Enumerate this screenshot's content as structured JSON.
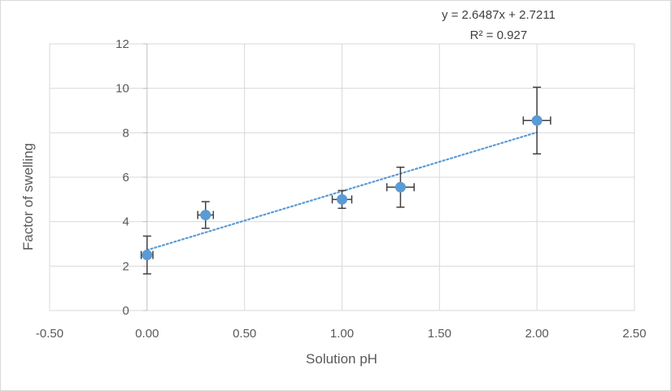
{
  "chart_data": {
    "type": "scatter",
    "title": "",
    "xlabel": "Solution pH",
    "ylabel": "Factor of swelling",
    "xlim": [
      -0.5,
      2.5
    ],
    "ylim": [
      0,
      12
    ],
    "x_ticks": [
      -0.5,
      0,
      0.5,
      1,
      1.5,
      2,
      2.5
    ],
    "x_tick_labels": [
      "-0.50",
      "0.00",
      "0.50",
      "1.00",
      "1.50",
      "2.00",
      "2.50"
    ],
    "y_ticks": [
      0,
      2,
      4,
      6,
      8,
      10,
      12
    ],
    "y_tick_labels": [
      "0",
      "2",
      "4",
      "6",
      "8",
      "10",
      "12"
    ],
    "grid": true,
    "legend": "none",
    "series": [
      {
        "color": "#5b9bd5",
        "points": [
          {
            "x": 0.0,
            "y": 2.5,
            "y_err": 0.85,
            "x_err": 0.03
          },
          {
            "x": 0.3,
            "y": 4.3,
            "y_err": 0.6,
            "x_err": 0.04
          },
          {
            "x": 1.0,
            "y": 5.0,
            "y_err": 0.4,
            "x_err": 0.05
          },
          {
            "x": 1.3,
            "y": 5.55,
            "y_err": 0.9,
            "x_err": 0.07
          },
          {
            "x": 2.0,
            "y": 8.55,
            "y_err": 1.5,
            "x_err": 0.07
          }
        ]
      }
    ],
    "trendline": {
      "type": "linear",
      "slope": 2.6487,
      "intercept": 2.7211,
      "x_range": [
        0,
        2
      ],
      "equation_label": "y = 2.6487x + 2.7211",
      "r2_label": "R² = 0.927",
      "color": "#5b9bd5"
    },
    "colors": {
      "grid": "#d9d9d9",
      "error_bar": "#404040",
      "text": "#595959"
    }
  }
}
